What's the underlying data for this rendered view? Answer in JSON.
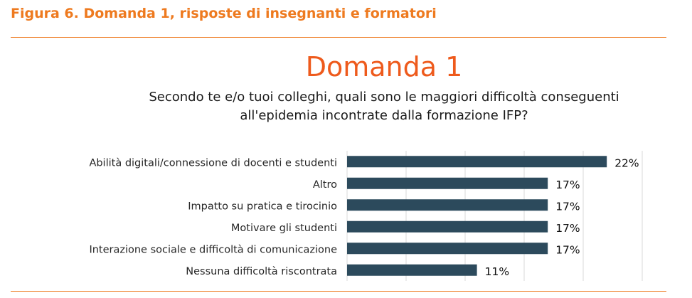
{
  "figure": {
    "caption": "Figura 6. Domanda 1, risposte di insegnanti e formatori"
  },
  "colors": {
    "accent": "#ee7a1f",
    "title": "#ee5a1c",
    "bar": "#2c4a5c",
    "gridline": "#d9d9d9",
    "text": "#1a1a1a"
  },
  "chart_data": {
    "type": "bar",
    "orientation": "horizontal",
    "title": "Domanda 1",
    "subtitle_lines": [
      "Secondo te e/o tuoi colleghi, quali sono le maggiori difficoltà conseguenti",
      "all'epidemia incontrate dalla formazione IFP?"
    ],
    "categories": [
      "Abilità digitali/connessione di docenti e studenti",
      "Altro",
      "Impatto su pratica e tirocinio",
      "Motivare gli studenti",
      "Interazione sociale e difficoltà di comunicazione",
      "Nessuna difficoltà riscontrata"
    ],
    "values": [
      22,
      17,
      17,
      17,
      17,
      11
    ],
    "data_labels": [
      "22%",
      "17%",
      "17%",
      "17%",
      "17%",
      "11%"
    ],
    "xlim": [
      0,
      25
    ],
    "grid": true,
    "legend": "none",
    "xlabel": "",
    "ylabel": ""
  }
}
